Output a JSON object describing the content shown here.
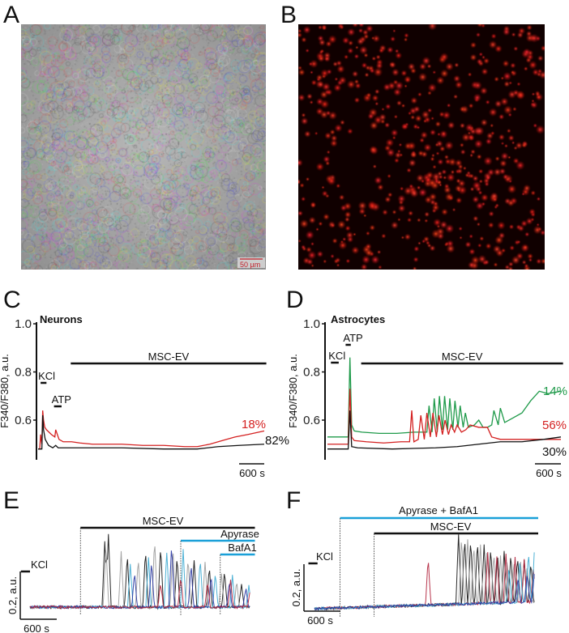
{
  "panels": {
    "a": {
      "label": "A",
      "scale_bar": "50 µm",
      "scale_color": "#c0202a"
    },
    "b": {
      "label": "B"
    },
    "c": {
      "label": "C",
      "title": "Neurons"
    },
    "d": {
      "label": "D",
      "title": "Astrocytes"
    },
    "e": {
      "label": "E"
    },
    "f": {
      "label": "F"
    }
  },
  "chart_data": [
    {
      "panel": "C",
      "type": "line",
      "title": "Neurons",
      "ylabel": "F340/F380, a.u.",
      "yticks": [
        "1.0",
        "0.8",
        "0.6"
      ],
      "ylim": [
        0.43,
        1.0
      ],
      "time_scale_label": "600 s",
      "x_unit": "s",
      "stimuli": [
        {
          "label": "KCl",
          "start": 60,
          "end": 200
        },
        {
          "label": "ATP",
          "start": 380,
          "end": 560
        },
        {
          "label": "MSC-EV",
          "start": 780,
          "end": 5450
        }
      ],
      "series": [
        {
          "name": "18%",
          "color": "#d42020",
          "t": [
            0,
            40,
            60,
            90,
            110,
            130,
            160,
            200,
            260,
            320,
            400,
            420,
            500,
            600,
            800,
            1000,
            1300,
            1600,
            2000,
            2500,
            3000,
            3500,
            3800,
            4100,
            4400,
            4700,
            5000,
            5400
          ],
          "y": [
            0.48,
            0.48,
            0.54,
            0.5,
            0.64,
            0.6,
            0.57,
            0.56,
            0.55,
            0.54,
            0.53,
            0.56,
            0.52,
            0.51,
            0.51,
            0.505,
            0.5,
            0.5,
            0.5,
            0.495,
            0.495,
            0.49,
            0.49,
            0.5,
            0.515,
            0.53,
            0.54,
            0.555
          ]
        },
        {
          "name": "82%",
          "color": "#111111",
          "t": [
            0,
            90,
            110,
            130,
            170,
            250,
            350,
            420,
            480,
            600,
            1000,
            2000,
            3000,
            3800,
            4300,
            4800,
            5400
          ],
          "y": [
            0.48,
            0.48,
            0.62,
            0.56,
            0.52,
            0.495,
            0.485,
            0.495,
            0.485,
            0.485,
            0.485,
            0.485,
            0.48,
            0.48,
            0.49,
            0.495,
            0.5
          ]
        }
      ]
    },
    {
      "panel": "D",
      "type": "line",
      "title": "Astrocytes",
      "ylabel": "F340/F380, a.u.",
      "yticks": [
        "1.0",
        "0.8",
        "0.6"
      ],
      "ylim": [
        0.43,
        1.0
      ],
      "time_scale_label": "600 s",
      "x_unit": "s",
      "stimuli": [
        {
          "label": "KCl",
          "start": 80,
          "end": 260
        },
        {
          "label": "ATP",
          "start": 420,
          "end": 540
        },
        {
          "label": "MSC-EV",
          "start": 780,
          "end": 5450
        }
      ],
      "series": [
        {
          "name": "14%",
          "color": "#1f9a4a",
          "t": [
            0,
            480,
            520,
            560,
            620,
            800,
            1200,
            1600,
            2000,
            2300,
            2350,
            2420,
            2470,
            2540,
            2590,
            2660,
            2710,
            2780,
            2830,
            2900,
            2950,
            3020,
            3070,
            3140,
            3190,
            3260,
            3400,
            3500,
            3600,
            3700,
            3800,
            3850,
            3950,
            4000,
            4100,
            4300,
            4500,
            4700,
            4900,
            5100,
            5400
          ],
          "y": [
            0.53,
            0.53,
            0.86,
            0.58,
            0.555,
            0.55,
            0.545,
            0.545,
            0.55,
            0.55,
            0.66,
            0.55,
            0.69,
            0.55,
            0.7,
            0.56,
            0.7,
            0.56,
            0.69,
            0.56,
            0.68,
            0.57,
            0.66,
            0.57,
            0.63,
            0.57,
            0.58,
            0.6,
            0.57,
            0.57,
            0.58,
            0.64,
            0.58,
            0.65,
            0.59,
            0.61,
            0.63,
            0.68,
            0.72,
            0.71,
            0.72
          ]
        },
        {
          "name": "56%",
          "color": "#d42020",
          "t": [
            0,
            480,
            520,
            560,
            620,
            900,
            1300,
            1700,
            1900,
            1950,
            2000,
            2100,
            2160,
            2240,
            2300,
            2380,
            2440,
            2520,
            2580,
            2660,
            2720,
            2800,
            2860,
            2940,
            3000,
            3100,
            3200,
            3300,
            3500,
            3700,
            3800,
            4000,
            4500,
            5000,
            5400
          ],
          "y": [
            0.5,
            0.5,
            0.73,
            0.53,
            0.515,
            0.51,
            0.505,
            0.51,
            0.51,
            0.64,
            0.51,
            0.52,
            0.62,
            0.52,
            0.63,
            0.53,
            0.63,
            0.53,
            0.62,
            0.54,
            0.6,
            0.54,
            0.58,
            0.55,
            0.58,
            0.55,
            0.56,
            0.58,
            0.57,
            0.57,
            0.53,
            0.52,
            0.52,
            0.52,
            0.52
          ]
        },
        {
          "name": "30%",
          "color": "#111111",
          "t": [
            0,
            480,
            520,
            560,
            700,
            1500,
            2500,
            3000,
            3500,
            4000,
            4500,
            5000,
            5400
          ],
          "y": [
            0.48,
            0.48,
            0.64,
            0.49,
            0.485,
            0.48,
            0.485,
            0.49,
            0.5,
            0.51,
            0.51,
            0.52,
            0.53
          ]
        }
      ]
    },
    {
      "panel": "E",
      "type": "line",
      "x_unit": "s",
      "scale_bars": {
        "y": "0.2, a.u.",
        "x": "600 s"
      },
      "stimuli": [
        {
          "label": "KCl",
          "start": -150,
          "end": 0
        },
        {
          "label": "MSC-EV",
          "start": 830,
          "end": 3700
        },
        {
          "label": "Apyrase",
          "start": 2480,
          "end": 3700
        },
        {
          "label": "BafA1",
          "start": 3130,
          "end": 3700
        }
      ],
      "series": [
        {
          "color": "#111111",
          "spikes": [
            [
              1230,
              0.28
            ],
            [
              1290,
              0.3
            ],
            [
              1600,
              0.22
            ],
            [
              1900,
              0.24
            ],
            [
              2150,
              0.26
            ],
            [
              2420,
              0.22
            ],
            [
              2700,
              0.2
            ],
            [
              2950,
              0.17
            ],
            [
              3200,
              0.15
            ],
            [
              3480,
              0.1
            ]
          ]
        },
        {
          "color": "#9a9a9a",
          "spikes": [
            [
              1250,
              0.26
            ],
            [
              1500,
              0.23
            ],
            [
              1780,
              0.21
            ],
            [
              2050,
              0.29
            ],
            [
              2350,
              0.25
            ],
            [
              2600,
              0.21
            ],
            [
              2880,
              0.19
            ],
            [
              3150,
              0.14
            ],
            [
              3400,
              0.11
            ]
          ]
        },
        {
          "color": "#3aa8d0",
          "spikes": [
            [
              1650,
              0.18
            ],
            [
              1950,
              0.21
            ],
            [
              2250,
              0.23
            ],
            [
              2520,
              0.24
            ],
            [
              2800,
              0.2
            ],
            [
              3050,
              0.14
            ],
            [
              3330,
              0.13
            ],
            [
              3600,
              0.09
            ]
          ]
        },
        {
          "color": "#2633a0",
          "spikes": [
            [
              1720,
              0.15
            ],
            [
              2000,
              0.2
            ],
            [
              2330,
              0.27
            ],
            [
              2650,
              0.18
            ],
            [
              2980,
              0.13
            ],
            [
              3280,
              0.11
            ],
            [
              3550,
              0.08
            ]
          ]
        },
        {
          "color": "#b0203a",
          "spikes": [
            [
              2150,
              0.1
            ],
            [
              2480,
              0.13
            ],
            [
              2920,
              0.11
            ],
            [
              3300,
              0.12
            ],
            [
              3620,
              0.07
            ]
          ]
        }
      ]
    },
    {
      "panel": "F",
      "type": "line",
      "x_unit": "s",
      "scale_bars": {
        "y": "0.2, a.u.",
        "x": "600 s"
      },
      "stimuli": [
        {
          "label": "KCl",
          "start": -100,
          "end": 50
        },
        {
          "label": "Apyrase + BafA1",
          "start": 420,
          "end": 3680
        },
        {
          "label": "MSC-EV",
          "start": 980,
          "end": 3680
        }
      ],
      "series": [
        {
          "color": "#111111",
          "spikes": [
            [
              2370,
              0.3
            ],
            [
              2470,
              0.29
            ],
            [
              2570,
              0.28
            ],
            [
              2680,
              0.27
            ],
            [
              2790,
              0.25
            ],
            [
              2900,
              0.24
            ],
            [
              3010,
              0.22
            ],
            [
              3120,
              0.22
            ],
            [
              3230,
              0.21
            ],
            [
              3340,
              0.2
            ],
            [
              3450,
              0.18
            ],
            [
              3560,
              0.17
            ]
          ]
        },
        {
          "color": "#9a9a9a",
          "spikes": [
            [
              2420,
              0.29
            ],
            [
              2520,
              0.28
            ],
            [
              2620,
              0.26
            ],
            [
              2730,
              0.25
            ],
            [
              2840,
              0.24
            ],
            [
              2950,
              0.22
            ],
            [
              3060,
              0.2
            ],
            [
              3170,
              0.19
            ],
            [
              3280,
              0.18
            ],
            [
              3390,
              0.17
            ],
            [
              3500,
              0.16
            ]
          ]
        },
        {
          "color": "#b0203a",
          "spikes": [
            [
              1870,
              0.2
            ],
            [
              2850,
              0.22
            ],
            [
              3000,
              0.2
            ],
            [
              3150,
              0.21
            ],
            [
              3300,
              0.19
            ],
            [
              3450,
              0.18
            ],
            [
              3600,
              0.14
            ]
          ]
        },
        {
          "color": "#3aa8d0",
          "spikes": [
            [
              3200,
              0.15
            ],
            [
              3380,
              0.18
            ],
            [
              3520,
              0.22
            ],
            [
              3620,
              0.23
            ]
          ]
        },
        {
          "color": "#2633a0",
          "spikes": [
            [
              3350,
              0.1
            ],
            [
              3500,
              0.12
            ],
            [
              3620,
              0.13
            ]
          ]
        }
      ]
    }
  ]
}
